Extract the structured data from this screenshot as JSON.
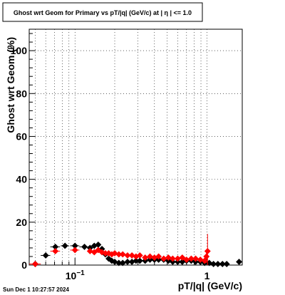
{
  "canvas": {
    "timestamp": "Sun Dec  1 10:27:57 2024"
  },
  "chart_data": {
    "type": "scatter",
    "title": "Ghost wrt Geom for Primary vs pT/|q| (GeV/c) at |  η  | <= 1.0",
    "xlabel": "pT/|q| (GeV/c)",
    "ylabel": "Ghost wrt Geom (%)",
    "xscale": "log",
    "xlim": [
      0.045,
      1.85
    ],
    "ylim": [
      0,
      110
    ],
    "grid": true,
    "x_major_ticks": [
      0.1,
      1
    ],
    "x_tick_labels": [
      {
        "value": 0.1,
        "base": "10",
        "exp": "−1"
      },
      {
        "value": 1,
        "label": "1"
      }
    ],
    "y_ticks": [
      0,
      20,
      40,
      60,
      80,
      100
    ],
    "y_tick_labels": [
      "0",
      "20",
      "40",
      "60",
      "80",
      "100"
    ],
    "series": [
      {
        "color": "#000000",
        "marker": "diamond",
        "points": [
          {
            "x": 0.05,
            "y": 0.5,
            "xerr": 0.005
          },
          {
            "x": 0.06,
            "y": 4.5,
            "xerr": 0.005
          },
          {
            "x": 0.071,
            "y": 8.5,
            "xerr": 0.006
          },
          {
            "x": 0.084,
            "y": 9.0,
            "xerr": 0.006
          },
          {
            "x": 0.1,
            "y": 9.0,
            "xerr": 0.008
          },
          {
            "x": 0.118,
            "y": 8.5,
            "xerr": 0.01
          },
          {
            "x": 0.13,
            "y": 8.0,
            "xerr": 0.004
          },
          {
            "x": 0.14,
            "y": 9.0,
            "xerr": 0.004
          },
          {
            "x": 0.15,
            "y": 9.5,
            "xerr": 0.004
          },
          {
            "x": 0.16,
            "y": 7.5,
            "xerr": 0.004
          },
          {
            "x": 0.17,
            "y": 5.0,
            "xerr": 0.004
          },
          {
            "x": 0.18,
            "y": 3.0,
            "xerr": 0.004
          },
          {
            "x": 0.19,
            "y": 2.0,
            "xerr": 0.004
          },
          {
            "x": 0.2,
            "y": 1.5,
            "xerr": 0.004
          },
          {
            "x": 0.215,
            "y": 1.0,
            "xerr": 0.005
          },
          {
            "x": 0.23,
            "y": 1.0,
            "xerr": 0.005
          },
          {
            "x": 0.25,
            "y": 1.5,
            "xerr": 0.005
          },
          {
            "x": 0.27,
            "y": 1.5,
            "xerr": 0.006
          },
          {
            "x": 0.29,
            "y": 2.0,
            "xerr": 0.006
          },
          {
            "x": 0.31,
            "y": 2.0,
            "xerr": 0.007
          },
          {
            "x": 0.34,
            "y": 2.0,
            "xerr": 0.008
          },
          {
            "x": 0.37,
            "y": 2.5,
            "xerr": 0.008
          },
          {
            "x": 0.4,
            "y": 2.5,
            "xerr": 0.009
          },
          {
            "x": 0.43,
            "y": 2.5,
            "xerr": 0.01
          },
          {
            "x": 0.47,
            "y": 2.5,
            "xerr": 0.01
          },
          {
            "x": 0.51,
            "y": 2.0,
            "xerr": 0.011
          },
          {
            "x": 0.55,
            "y": 1.5,
            "xerr": 0.012
          },
          {
            "x": 0.6,
            "y": 1.5,
            "xerr": 0.013
          },
          {
            "x": 0.65,
            "y": 1.5,
            "xerr": 0.014
          },
          {
            "x": 0.7,
            "y": 2.0,
            "xerr": 0.015
          },
          {
            "x": 0.76,
            "y": 2.0,
            "xerr": 0.016
          },
          {
            "x": 0.82,
            "y": 1.5,
            "xerr": 0.018
          },
          {
            "x": 0.89,
            "y": 1.5,
            "xerr": 0.019
          },
          {
            "x": 0.96,
            "y": 1.0,
            "xerr": 0.021
          },
          {
            "x": 1.04,
            "y": 1.0,
            "xerr": 0.022
          },
          {
            "x": 1.12,
            "y": 0.5,
            "xerr": 0.024
          },
          {
            "x": 1.21,
            "y": 0.5,
            "xerr": 0.026
          },
          {
            "x": 1.31,
            "y": 0.5,
            "xerr": 0.028
          },
          {
            "x": 1.41,
            "y": 0.5,
            "xerr": 0.03
          },
          {
            "x": 1.75,
            "y": 1.5,
            "xerr": 0.035
          }
        ]
      },
      {
        "color": "#ff0000",
        "marker": "diamond",
        "points": [
          {
            "x": 0.05,
            "y": 0.5,
            "xerr": 0.005
          },
          {
            "x": 0.071,
            "y": 6.5,
            "xerr": 0.006,
            "yerr": 1.0
          },
          {
            "x": 0.1,
            "y": 7.0,
            "xerr": 0.008
          },
          {
            "x": 0.13,
            "y": 6.5,
            "xerr": 0.004
          },
          {
            "x": 0.14,
            "y": 6.0,
            "xerr": 0.004
          },
          {
            "x": 0.15,
            "y": 7.0,
            "xerr": 0.004
          },
          {
            "x": 0.16,
            "y": 6.0,
            "xerr": 0.004
          },
          {
            "x": 0.17,
            "y": 5.5,
            "xerr": 0.004
          },
          {
            "x": 0.18,
            "y": 5.5,
            "xerr": 0.004
          },
          {
            "x": 0.19,
            "y": 5.0,
            "xerr": 0.004
          },
          {
            "x": 0.2,
            "y": 5.5,
            "xerr": 0.004
          },
          {
            "x": 0.215,
            "y": 5.0,
            "xerr": 0.005
          },
          {
            "x": 0.23,
            "y": 5.0,
            "xerr": 0.005
          },
          {
            "x": 0.25,
            "y": 4.5,
            "xerr": 0.005
          },
          {
            "x": 0.27,
            "y": 4.5,
            "xerr": 0.006
          },
          {
            "x": 0.29,
            "y": 4.0,
            "xerr": 0.006
          },
          {
            "x": 0.31,
            "y": 4.5,
            "xerr": 0.007
          },
          {
            "x": 0.34,
            "y": 3.5,
            "xerr": 0.008
          },
          {
            "x": 0.37,
            "y": 4.0,
            "xerr": 0.008
          },
          {
            "x": 0.4,
            "y": 3.5,
            "xerr": 0.009
          },
          {
            "x": 0.43,
            "y": 4.0,
            "xerr": 0.01
          },
          {
            "x": 0.47,
            "y": 3.0,
            "xerr": 0.01
          },
          {
            "x": 0.51,
            "y": 3.5,
            "xerr": 0.011
          },
          {
            "x": 0.55,
            "y": 3.0,
            "xerr": 0.012
          },
          {
            "x": 0.6,
            "y": 3.0,
            "xerr": 0.013
          },
          {
            "x": 0.65,
            "y": 3.5,
            "xerr": 0.014
          },
          {
            "x": 0.7,
            "y": 2.5,
            "xerr": 0.015
          },
          {
            "x": 0.76,
            "y": 3.0,
            "xerr": 0.016
          },
          {
            "x": 0.82,
            "y": 3.0,
            "xerr": 0.018
          },
          {
            "x": 0.89,
            "y": 2.5,
            "xerr": 0.019
          },
          {
            "x": 0.96,
            "y": 2.0,
            "xerr": 0.021
          },
          {
            "x": 0.99,
            "y": 4.0,
            "xerr": 0.01,
            "yerr": 3.0
          },
          {
            "x": 1.01,
            "y": 6.5,
            "xerr": 0.01,
            "yerr": 8.0
          }
        ]
      }
    ]
  }
}
